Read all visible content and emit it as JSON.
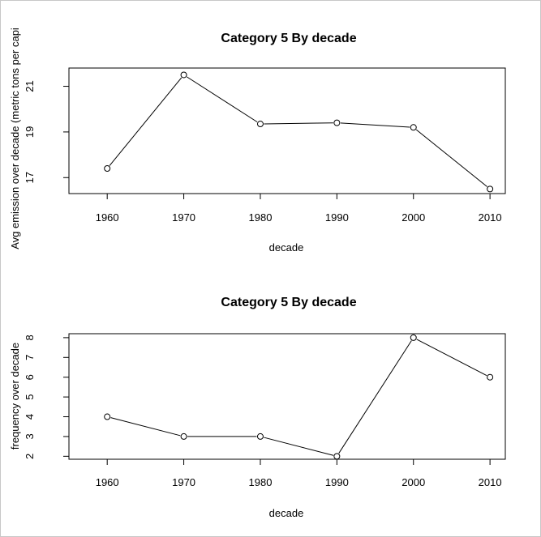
{
  "chart_data": [
    {
      "type": "line",
      "title": "Category 5 By decade",
      "xlabel": "decade",
      "ylabel": "Avg emission over decade (metric tons per capi",
      "x": [
        1960,
        1970,
        1980,
        1990,
        2000,
        2010
      ],
      "x_tick_labels": [
        "1960",
        "1970",
        "1980",
        "1990",
        "2000",
        "2010"
      ],
      "y": [
        17.4,
        21.5,
        19.35,
        19.4,
        19.2,
        16.5
      ],
      "y_ticks": [
        17,
        19,
        21
      ],
      "y_tick_labels": [
        "17",
        "19",
        "21"
      ],
      "xlim": [
        1955,
        2012
      ],
      "ylim": [
        16.3,
        21.8
      ],
      "markers": "open-circle",
      "grid": false
    },
    {
      "type": "line",
      "title": "Category 5 By decade",
      "xlabel": "decade",
      "ylabel": "frequency over decade",
      "x": [
        1960,
        1970,
        1980,
        1990,
        2000,
        2010
      ],
      "x_tick_labels": [
        "1960",
        "1970",
        "1980",
        "1990",
        "2000",
        "2010"
      ],
      "y": [
        4,
        3,
        3,
        2,
        8,
        6
      ],
      "y_ticks": [
        2,
        3,
        4,
        5,
        6,
        7,
        8
      ],
      "y_tick_labels": [
        "2",
        "3",
        "4",
        "5",
        "6",
        "7",
        "8"
      ],
      "xlim": [
        1955,
        2012
      ],
      "ylim": [
        1.85,
        8.2
      ],
      "markers": "open-circle",
      "grid": false
    }
  ]
}
